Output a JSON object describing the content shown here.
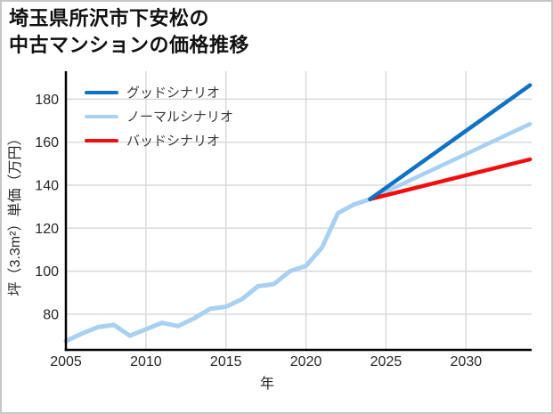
{
  "title": {
    "line1": "埼玉県所沢市下安松の",
    "line2": "中古マンションの価格推移"
  },
  "legend": [
    {
      "label": "グッドシナリオ",
      "color": "#1172c4"
    },
    {
      "label": "ノーマルシナリオ",
      "color": "#a8d0f2"
    },
    {
      "label": "バッドシナリオ",
      "color": "#f20d0d"
    }
  ],
  "colors": {
    "good": "#1172c4",
    "normal": "#a8d0f2",
    "bad": "#f20d0d",
    "grid": "#d9d9d9",
    "spine": "#000000",
    "tick_text": "#262626"
  },
  "chart_data": {
    "type": "line",
    "title": "埼玉県所沢市下安松の中古マンションの価格推移",
    "xlabel": "年",
    "ylabel": "坪（3.3m²）単価（万円）",
    "x_ticks": [
      2005,
      2010,
      2015,
      2020,
      2025,
      2030
    ],
    "y_ticks": [
      80,
      100,
      120,
      140,
      160,
      180
    ],
    "xlim": [
      2005,
      2034.1
    ],
    "ylim": [
      63.4,
      193
    ],
    "grid": true,
    "legend_position": "upper left",
    "series": [
      {
        "name": "history",
        "color": "#a8d0f2",
        "width": 5,
        "x": [
          2005,
          2006,
          2007,
          2008,
          2009,
          2010,
          2011,
          2012,
          2013,
          2014,
          2015,
          2016,
          2017,
          2018,
          2019,
          2020,
          2021,
          2022,
          2023,
          2024
        ],
        "values": [
          67.5,
          71,
          74,
          75,
          70,
          73,
          76,
          74.5,
          78,
          82.5,
          83.5,
          87,
          93,
          94,
          100,
          102.5,
          111,
          127,
          131,
          133.5
        ]
      },
      {
        "name": "ノーマルシナリオ",
        "color": "#a8d0f2",
        "width": 4.5,
        "x": [
          2024,
          2034
        ],
        "values": [
          133.5,
          168.5
        ]
      },
      {
        "name": "バッドシナリオ",
        "color": "#f20d0d",
        "width": 4.5,
        "x": [
          2024,
          2034
        ],
        "values": [
          133.5,
          152
        ]
      },
      {
        "name": "グッドシナリオ",
        "color": "#1172c4",
        "width": 4.5,
        "x": [
          2024,
          2034
        ],
        "values": [
          133.5,
          186.5
        ]
      }
    ]
  }
}
